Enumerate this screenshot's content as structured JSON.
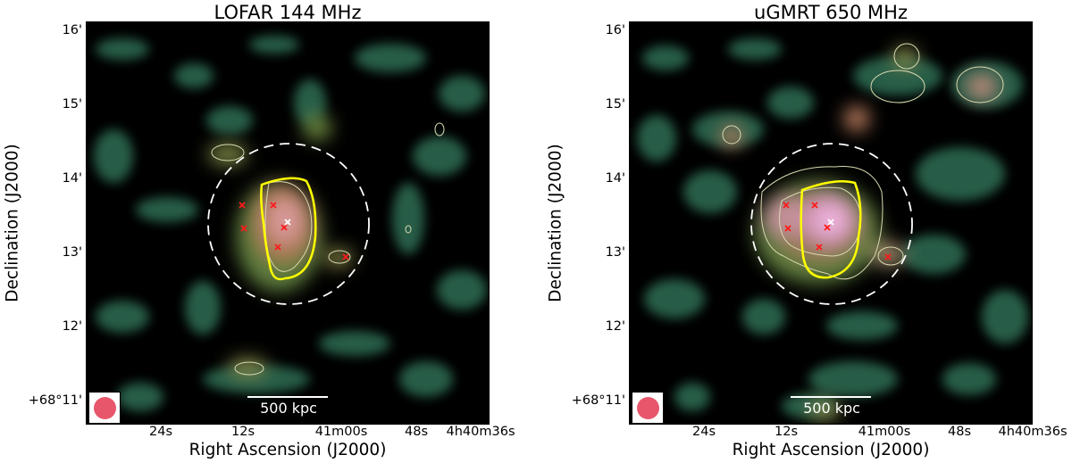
{
  "panels": [
    {
      "title": "LOFAR 144 MHz",
      "dec_ticks": [
        "16'",
        "15'",
        "14'",
        "13'",
        "12'",
        "+68°11'"
      ],
      "ra_ticks": [
        "24s",
        "12s",
        "41m00s",
        "48s",
        "4h40m36s"
      ],
      "xlabel": "Right Ascension (J2000)",
      "ylabel": "Declination (J2000)",
      "scale_bar_label": "500 kpc"
    },
    {
      "title": "uGMRT 650 MHz",
      "dec_ticks": [
        "16'",
        "15'",
        "14'",
        "13'",
        "12'",
        "+68°11'"
      ],
      "ra_ticks": [
        "24s",
        "12s",
        "41m00s",
        "48s",
        "4h40m36s"
      ],
      "xlabel": "Right Ascension (J2000)",
      "ylabel": "Declination (J2000)",
      "scale_bar_label": "500 kpc"
    }
  ],
  "colors": {
    "background": "#000000",
    "emission_low": "#2d6e55",
    "emission_mid": "#6f8a3f",
    "emission_high": "#c07a6a",
    "emission_peak": "#e9a9d6",
    "contour": "#d9d9b0",
    "region_outline": "#ffff00",
    "circle": "#ffffff",
    "source_marker": "#ff1a1a",
    "centre_marker": "#ffffff",
    "beam": "#e8566b"
  }
}
